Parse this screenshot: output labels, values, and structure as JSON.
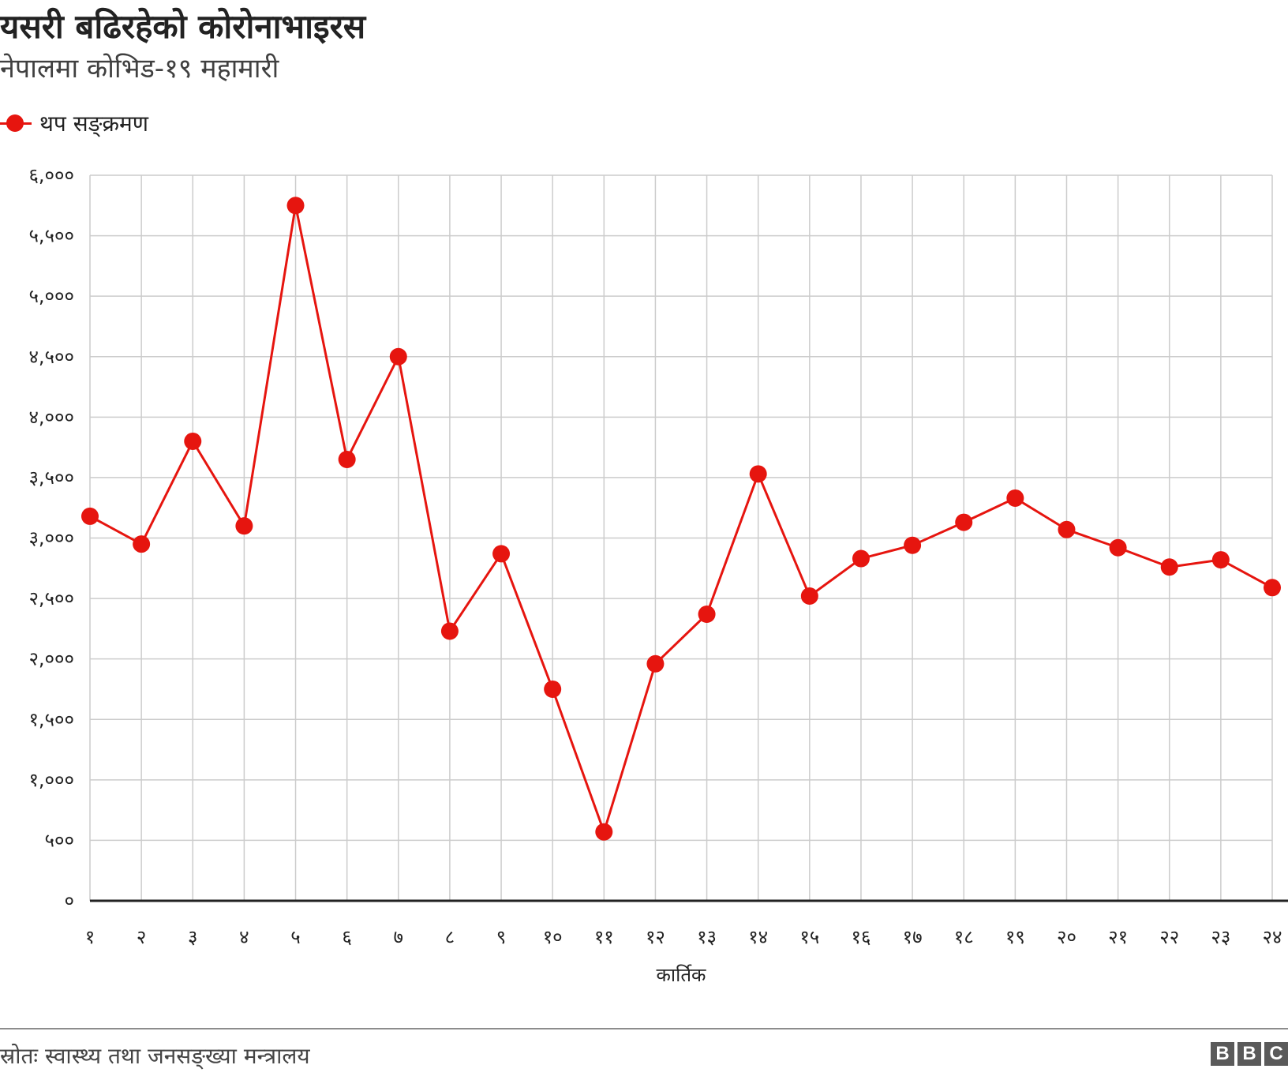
{
  "header": {
    "title": "यसरी बढिरहेको कोरोनाभाइरस",
    "subtitle": "नेपालमा कोभिड-१९ महामारी"
  },
  "legend": {
    "label": "थप सङ्क्रमण"
  },
  "footer": {
    "source": "स्रोतः स्वास्थ्य तथा जनसङ्ख्या मन्त्रालय",
    "logo_letters": [
      "B",
      "B",
      "C"
    ]
  },
  "colors": {
    "series": "#e6150f",
    "grid": "#cccccc",
    "axis": "#222222"
  },
  "chart_data": {
    "type": "line",
    "title": "यसरी बढिरहेको कोरोनाभाइरस",
    "subtitle": "नेपालमा कोभिड-१९ महामारी",
    "xlabel": "कार्तिक",
    "ylabel": "",
    "x": [
      "१",
      "२",
      "३",
      "४",
      "५",
      "६",
      "७",
      "८",
      "९",
      "१०",
      "११",
      "१२",
      "१३",
      "१४",
      "१५",
      "१६",
      "१७",
      "१८",
      "१९",
      "२०",
      "२१",
      "२२",
      "२३",
      "२४"
    ],
    "y_ticks": [
      0,
      500,
      1000,
      1500,
      2000,
      2500,
      3000,
      3500,
      4000,
      4500,
      5000,
      5500,
      6000
    ],
    "y_tick_labels": [
      "०",
      "५००",
      "१,०००",
      "१,५००",
      "२,०००",
      "२,५००",
      "३,०००",
      "३,५००",
      "४,०००",
      "४,५००",
      "५,०००",
      "५,५००",
      "६,०००"
    ],
    "ylim": [
      0,
      6000
    ],
    "grid": true,
    "legend_position": "top-left",
    "series": [
      {
        "name": "थप सङ्क्रमण",
        "values": [
          3180,
          2950,
          3800,
          3100,
          5750,
          3650,
          4500,
          2230,
          2870,
          1750,
          570,
          1960,
          2370,
          3530,
          2520,
          2830,
          2940,
          3130,
          3330,
          3070,
          2920,
          2760,
          2820,
          2590
        ]
      }
    ]
  }
}
